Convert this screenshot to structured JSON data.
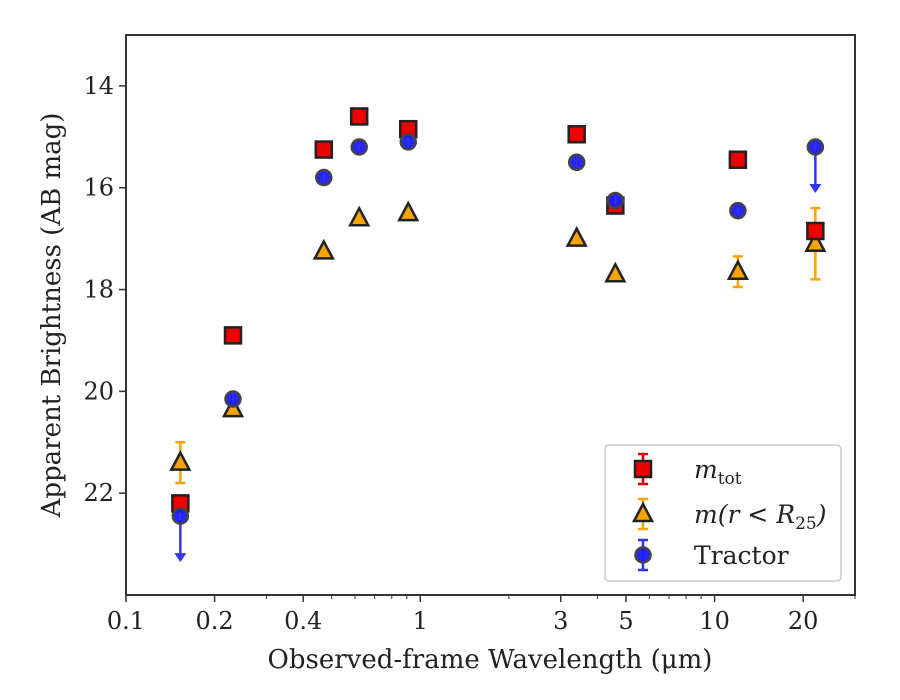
{
  "chart_data": {
    "type": "scatter",
    "xlabel": "Observed-frame Wavelength (μm)",
    "ylabel": "Apparent Brightness (AB mag)",
    "xscale": "log",
    "xlim": [
      0.1,
      30
    ],
    "ylim": [
      24,
      13
    ],
    "y_inverted": true,
    "grid": false,
    "legend_position": "lower-right",
    "x_ticks": [
      {
        "value": 0.1,
        "label": "0.1"
      },
      {
        "value": 0.2,
        "label": "0.2"
      },
      {
        "value": 0.4,
        "label": "0.4"
      },
      {
        "value": 1,
        "label": "1"
      },
      {
        "value": 3,
        "label": "3"
      },
      {
        "value": 5,
        "label": "5"
      },
      {
        "value": 10,
        "label": "10"
      },
      {
        "value": 20,
        "label": "20"
      }
    ],
    "y_ticks": [
      {
        "value": 14,
        "label": "14"
      },
      {
        "value": 16,
        "label": "16"
      },
      {
        "value": 18,
        "label": "18"
      },
      {
        "value": 20,
        "label": "20"
      },
      {
        "value": 22,
        "label": "22"
      }
    ],
    "series": [
      {
        "name": "m_tot",
        "legend_base": "m",
        "legend_sub": "tot",
        "marker": "square",
        "marker_color": "#ee0000",
        "error_color": "#dd0000",
        "points": [
          {
            "x": 0.153,
            "y": 22.2,
            "yerr": 0.1
          },
          {
            "x": 0.231,
            "y": 18.9
          },
          {
            "x": 0.47,
            "y": 15.25
          },
          {
            "x": 0.62,
            "y": 14.6
          },
          {
            "x": 0.91,
            "y": 14.85
          },
          {
            "x": 3.4,
            "y": 14.95
          },
          {
            "x": 4.6,
            "y": 16.35
          },
          {
            "x": 12.0,
            "y": 15.45
          },
          {
            "x": 22.0,
            "y": 16.85
          }
        ]
      },
      {
        "name": "m(r < R25)",
        "legend_base": "m(r < R",
        "legend_sub": "25",
        "legend_close": ")",
        "marker": "triangle",
        "marker_color": "#f5a400",
        "error_color": "#f5a400",
        "points": [
          {
            "x": 0.153,
            "y": 21.4,
            "yerr": 0.4
          },
          {
            "x": 0.231,
            "y": 20.35
          },
          {
            "x": 0.47,
            "y": 17.25
          },
          {
            "x": 0.62,
            "y": 16.6
          },
          {
            "x": 0.91,
            "y": 16.5
          },
          {
            "x": 3.4,
            "y": 17.0
          },
          {
            "x": 4.6,
            "y": 17.7
          },
          {
            "x": 12.0,
            "y": 17.65,
            "yerr": 0.3
          },
          {
            "x": 22.0,
            "y": 17.1,
            "yerr": 0.7
          }
        ]
      },
      {
        "name": "Tractor",
        "marker": "circle",
        "marker_color": "#1a1aff",
        "error_color": "#3333ee",
        "points": [
          {
            "x": 0.153,
            "y": 22.45,
            "upper_limit": true
          },
          {
            "x": 0.231,
            "y": 20.15
          },
          {
            "x": 0.47,
            "y": 15.8
          },
          {
            "x": 0.62,
            "y": 15.2
          },
          {
            "x": 0.91,
            "y": 15.1
          },
          {
            "x": 3.4,
            "y": 15.5
          },
          {
            "x": 4.6,
            "y": 16.25
          },
          {
            "x": 12.0,
            "y": 16.45
          },
          {
            "x": 22.0,
            "y": 15.2,
            "upper_limit": true
          }
        ]
      }
    ]
  }
}
